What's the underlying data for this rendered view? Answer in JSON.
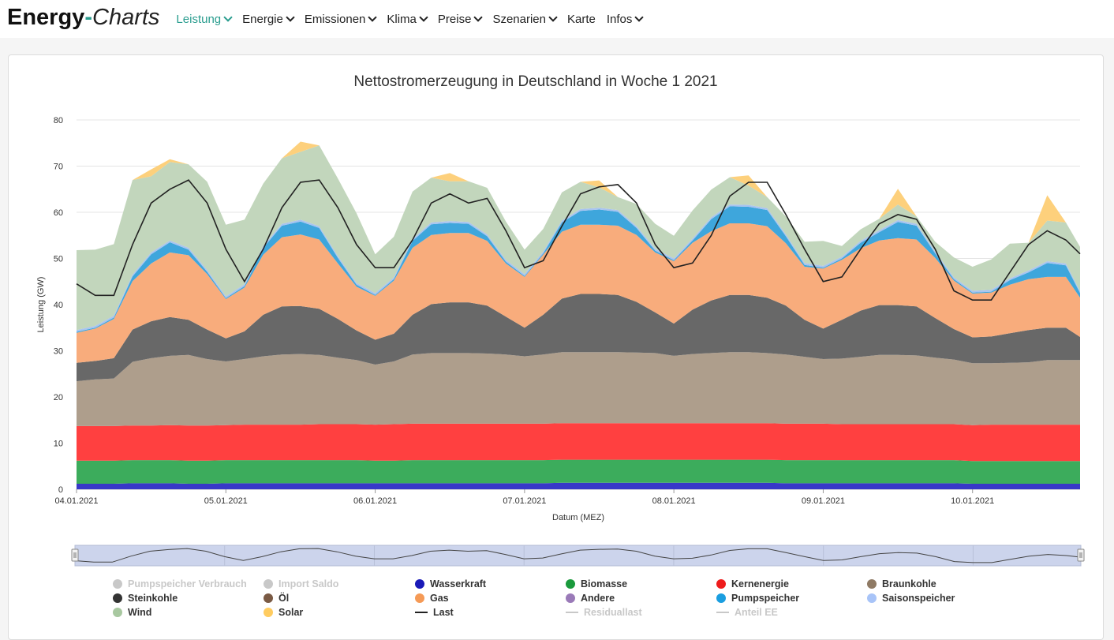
{
  "brand": {
    "part1": "Energy",
    "part2": "-",
    "part3": "Charts"
  },
  "nav": [
    {
      "label": "Leistung",
      "dropdown": true,
      "active": true
    },
    {
      "label": "Energie",
      "dropdown": true
    },
    {
      "label": "Emissionen",
      "dropdown": true
    },
    {
      "label": "Klima",
      "dropdown": true
    },
    {
      "label": "Preise",
      "dropdown": true
    },
    {
      "label": "Szenarien",
      "dropdown": true
    },
    {
      "label": "Karte",
      "dropdown": false
    },
    {
      "label": "Infos",
      "dropdown": true
    }
  ],
  "colors": {
    "accent": "#2a9d8f"
  },
  "chart_data": {
    "type": "area",
    "stacked": true,
    "title": "Nettostromerzeugung in Deutschland in Woche 1 2021",
    "xlabel": "Datum (MEZ)",
    "ylabel": "Leistung (GW)",
    "ylim": [
      0,
      80
    ],
    "yticks": [
      "0",
      "10",
      "20",
      "30",
      "40",
      "50",
      "60",
      "70",
      "80"
    ],
    "xticks": [
      "04.01.2021",
      "05.01.2021",
      "06.01.2021",
      "07.01.2021",
      "08.01.2021",
      "09.01.2021",
      "10.01.2021"
    ],
    "xrange_days": [
      0,
      6.72
    ],
    "x": [
      0,
      0.125,
      0.25,
      0.375,
      0.5,
      0.625,
      0.75,
      0.875,
      1.0,
      1.125,
      1.25,
      1.375,
      1.5,
      1.625,
      1.75,
      1.875,
      2.0,
      2.125,
      2.25,
      2.375,
      2.5,
      2.625,
      2.75,
      2.875,
      3.0,
      3.125,
      3.25,
      3.375,
      3.5,
      3.625,
      3.75,
      3.875,
      4.0,
      4.125,
      4.25,
      4.375,
      4.5,
      4.625,
      4.75,
      4.875,
      5.0,
      5.125,
      5.25,
      5.375,
      5.5,
      5.625,
      5.75,
      5.875,
      6.0,
      6.125,
      6.25,
      6.375,
      6.5,
      6.625,
      6.72
    ],
    "series": [
      {
        "name": "Wasserkraft",
        "color": "#3838c8",
        "values": [
          1.2,
          1.2,
          1.2,
          1.3,
          1.3,
          1.3,
          1.2,
          1.2,
          1.3,
          1.3,
          1.3,
          1.3,
          1.3,
          1.3,
          1.3,
          1.3,
          1.3,
          1.3,
          1.3,
          1.3,
          1.3,
          1.3,
          1.3,
          1.3,
          1.3,
          1.3,
          1.4,
          1.4,
          1.4,
          1.4,
          1.4,
          1.4,
          1.4,
          1.4,
          1.4,
          1.4,
          1.4,
          1.4,
          1.3,
          1.3,
          1.3,
          1.3,
          1.3,
          1.3,
          1.3,
          1.3,
          1.3,
          1.3,
          1.2,
          1.2,
          1.2,
          1.2,
          1.2,
          1.2,
          1.2
        ]
      },
      {
        "name": "Biomasse",
        "color": "#3cac5c",
        "values": [
          5.0,
          5.0,
          5.0,
          5.0,
          5.0,
          5.0,
          5.0,
          5.0,
          5.0,
          5.0,
          5.0,
          5.0,
          5.0,
          5.0,
          5.0,
          5.0,
          4.9,
          4.9,
          5.0,
          5.0,
          5.0,
          5.0,
          5.0,
          5.0,
          5.0,
          5.0,
          5.0,
          5.0,
          5.0,
          5.0,
          5.0,
          5.0,
          5.0,
          5.0,
          5.0,
          5.0,
          5.0,
          5.0,
          5.0,
          5.0,
          5.0,
          5.0,
          5.0,
          5.0,
          5.0,
          5.0,
          5.0,
          5.0,
          4.9,
          4.9,
          4.9,
          4.9,
          4.9,
          4.9,
          4.9
        ]
      },
      {
        "name": "Kernenergie",
        "color": "#ff4040",
        "values": [
          7.5,
          7.5,
          7.5,
          7.5,
          7.5,
          7.6,
          7.6,
          7.6,
          7.6,
          7.7,
          7.7,
          7.7,
          7.7,
          7.8,
          7.8,
          7.8,
          7.8,
          7.9,
          7.9,
          7.9,
          7.9,
          7.9,
          7.9,
          7.9,
          7.9,
          7.9,
          7.9,
          7.9,
          7.9,
          7.9,
          7.9,
          7.9,
          7.9,
          7.9,
          7.9,
          7.9,
          7.9,
          7.9,
          7.9,
          7.9,
          7.9,
          7.8,
          7.8,
          7.8,
          7.8,
          7.8,
          7.8,
          7.8,
          7.8,
          7.9,
          7.9,
          7.9,
          7.9,
          7.9,
          7.9
        ]
      },
      {
        "name": "Braunkohle",
        "color": "#ae9e8c",
        "values": [
          9.7,
          10.1,
          10.3,
          13.8,
          14.6,
          15.0,
          15.3,
          14.4,
          13.8,
          14.2,
          14.8,
          15.2,
          15.3,
          15.0,
          14.4,
          13.9,
          13.0,
          13.6,
          15.0,
          15.3,
          15.3,
          15.3,
          15.2,
          15.0,
          14.6,
          15.0,
          15.4,
          15.4,
          15.4,
          15.4,
          15.3,
          15.2,
          14.6,
          15.0,
          15.2,
          15.4,
          15.4,
          15.2,
          15.0,
          14.5,
          14.0,
          14.2,
          14.6,
          15.0,
          15.0,
          14.9,
          14.4,
          14.0,
          13.4,
          13.3,
          13.4,
          13.5,
          14.0,
          14.0,
          14.0
        ]
      },
      {
        "name": "Steinkohle",
        "color": "#686868",
        "values": [
          4.0,
          4.0,
          4.4,
          7.0,
          8.0,
          8.4,
          7.6,
          6.4,
          5.0,
          6.0,
          9.0,
          10.4,
          10.4,
          10.0,
          8.4,
          6.4,
          5.4,
          6.0,
          8.6,
          10.6,
          11.0,
          11.0,
          10.4,
          8.2,
          6.2,
          8.6,
          11.6,
          12.6,
          12.6,
          12.4,
          11.0,
          8.8,
          7.0,
          9.6,
          11.4,
          12.4,
          12.4,
          12.0,
          10.6,
          8.0,
          6.6,
          8.4,
          10.0,
          10.8,
          10.8,
          10.6,
          8.6,
          6.6,
          5.6,
          5.8,
          6.4,
          7.0,
          7.0,
          7.0,
          5.0
        ]
      },
      {
        "name": "Gas",
        "color": "#f8ac7c",
        "values": [
          6.5,
          7.0,
          8.5,
          10.5,
          12.5,
          14.0,
          14.0,
          12.0,
          8.5,
          9.5,
          13.0,
          15.0,
          15.5,
          15.0,
          12.0,
          9.5,
          9.5,
          11.5,
          14.5,
          15.0,
          15.0,
          15.0,
          14.0,
          11.5,
          11.0,
          13.0,
          14.5,
          15.0,
          15.0,
          15.0,
          14.5,
          13.0,
          13.5,
          14.5,
          15.0,
          15.5,
          15.5,
          15.5,
          13.5,
          11.5,
          13.0,
          13.0,
          13.5,
          14.0,
          14.5,
          14.5,
          13.0,
          10.5,
          9.5,
          9.5,
          10.5,
          11.0,
          11.0,
          11.0,
          8.5
        ]
      },
      {
        "name": "Pumpspeicher",
        "color": "#3ea6dc",
        "values": [
          0.2,
          0.2,
          0.3,
          1.0,
          2.0,
          2.2,
          1.2,
          0.5,
          0.2,
          0.3,
          1.5,
          2.5,
          2.8,
          2.5,
          1.2,
          0.4,
          0.2,
          0.3,
          1.5,
          2.3,
          2.2,
          2.0,
          1.0,
          0.4,
          0.2,
          0.3,
          2.0,
          3.0,
          3.3,
          3.0,
          1.5,
          0.4,
          0.2,
          0.5,
          2.6,
          3.7,
          3.6,
          3.5,
          1.5,
          0.4,
          0.2,
          0.3,
          1.2,
          1.8,
          3.5,
          3.0,
          1.0,
          0.3,
          0.2,
          0.2,
          1.0,
          1.5,
          3.0,
          2.5,
          1.0
        ]
      },
      {
        "name": "Saisonspeicher",
        "color": "#a8c4f0",
        "values": [
          0.4,
          0.4,
          0.4,
          0.4,
          0.4,
          0.4,
          0.4,
          0.4,
          0.4,
          0.4,
          0.4,
          0.4,
          0.4,
          0.4,
          0.4,
          0.4,
          0.4,
          0.4,
          0.4,
          0.4,
          0.4,
          0.4,
          0.4,
          0.4,
          0.4,
          0.4,
          0.4,
          0.4,
          0.4,
          0.4,
          0.4,
          0.4,
          0.4,
          0.4,
          0.4,
          0.4,
          0.4,
          0.4,
          0.4,
          0.4,
          0.4,
          0.4,
          0.4,
          0.4,
          0.4,
          0.4,
          0.4,
          0.4,
          0.4,
          0.4,
          0.4,
          0.4,
          0.4,
          0.4,
          0.4
        ]
      },
      {
        "name": "Wind",
        "color": "#c2d6bc",
        "values": [
          17.3,
          16.5,
          15.5,
          20.5,
          16.5,
          17.0,
          18.1,
          19.1,
          15.5,
          14.0,
          13.5,
          14.2,
          14.7,
          17.5,
          16.8,
          15.1,
          8.4,
          8.8,
          10.3,
          9.7,
          8.6,
          8.8,
          10.1,
          8.3,
          5.3,
          4.9,
          6.1,
          5.9,
          4.4,
          2.8,
          4.8,
          5.4,
          4.9,
          6.1,
          6.0,
          5.9,
          4.2,
          2.4,
          3.9,
          4.6,
          5.4,
          2.3,
          2.5,
          2.5,
          3.4,
          1.6,
          2.1,
          4.3,
          5.2,
          6.6,
          7.5,
          6.0,
          8.8,
          8.9,
          9.6
        ]
      },
      {
        "name": "Solar",
        "color": "#fdd07c",
        "values": [
          0,
          0,
          0,
          0,
          1.5,
          0.6,
          0,
          0,
          0,
          0,
          0,
          0,
          2.2,
          0,
          0,
          0,
          0,
          0,
          0,
          0,
          1.8,
          0,
          0,
          0,
          0,
          0,
          0,
          0,
          1.5,
          0,
          0,
          0,
          0,
          0,
          0,
          0,
          2.2,
          0,
          0,
          0,
          0,
          0,
          0,
          0,
          3.4,
          0,
          0,
          0,
          0,
          0,
          0,
          0,
          5.5,
          0,
          0
        ]
      },
      {
        "name": "Last",
        "type": "line",
        "color": "#222222",
        "values": [
          44.5,
          42,
          42,
          53,
          62,
          65,
          67,
          62,
          52,
          45,
          52,
          61,
          66.5,
          67,
          61,
          53,
          48,
          48,
          54,
          62,
          64,
          62,
          63,
          56,
          48,
          49.5,
          57,
          64,
          65.5,
          66,
          62,
          53,
          48,
          49,
          55,
          63.5,
          66.5,
          66.5,
          59.5,
          52,
          45,
          46,
          52,
          57.5,
          59.5,
          58.5,
          52,
          43,
          41,
          41,
          47,
          53,
          56,
          54,
          51
        ]
      }
    ],
    "legend": [
      {
        "name": "Pumpspeicher Verbrauch",
        "color": "#c8c8c8",
        "marker": "dot",
        "off": true
      },
      {
        "name": "Import Saldo",
        "color": "#c8c8c8",
        "marker": "dot",
        "off": true
      },
      {
        "name": "Wasserkraft",
        "color": "#1a1ab8",
        "marker": "dot"
      },
      {
        "name": "Biomasse",
        "color": "#1a9a3c",
        "marker": "dot"
      },
      {
        "name": "Kernenergie",
        "color": "#ee1c1c",
        "marker": "dot"
      },
      {
        "name": "Braunkohle",
        "color": "#8f7a64",
        "marker": "dot"
      },
      {
        "name": "Steinkohle",
        "color": "#333333",
        "marker": "dot"
      },
      {
        "name": "Öl",
        "color": "#7a5a44",
        "marker": "dot"
      },
      {
        "name": "Gas",
        "color": "#f59a56",
        "marker": "dot"
      },
      {
        "name": "Andere",
        "color": "#9a7ab8",
        "marker": "dot"
      },
      {
        "name": "Pumpspeicher",
        "color": "#1a9ee0",
        "marker": "dot"
      },
      {
        "name": "Saisonspeicher",
        "color": "#a8c4f8",
        "marker": "dot"
      },
      {
        "name": "Wind",
        "color": "#a8c8a0",
        "marker": "dot"
      },
      {
        "name": "Solar",
        "color": "#ffcc60",
        "marker": "dot"
      },
      {
        "name": "Last",
        "color": "#222222",
        "marker": "line"
      },
      {
        "name": "Residuallast",
        "color": "#c8c8c8",
        "marker": "line",
        "off": true
      },
      {
        "name": "Anteil EE",
        "color": "#c8c8c8",
        "marker": "line",
        "off": true
      }
    ]
  }
}
